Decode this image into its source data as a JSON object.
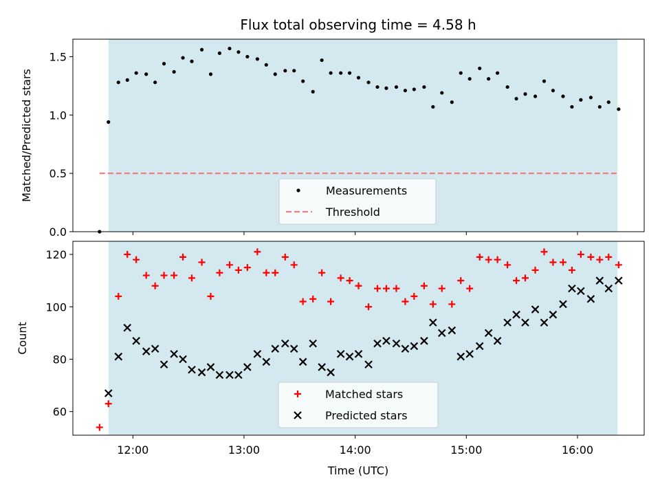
{
  "chart_data": {
    "title": "Flux total observing time = 4.58 h",
    "xlabel": "Time (UTC)",
    "x_units": "hours UTC",
    "x_ticks": [
      {
        "value": 12,
        "label": "12:00"
      },
      {
        "value": 13,
        "label": "13:00"
      },
      {
        "value": 14,
        "label": "14:00"
      },
      {
        "value": 15,
        "label": "15:00"
      },
      {
        "value": 16,
        "label": "16:00"
      }
    ],
    "xlim": [
      11.46,
      16.6
    ],
    "shaded_span": [
      11.78,
      16.36
    ],
    "shade_color": "#d3e9ef",
    "panels": [
      {
        "type": "scatter",
        "ylabel": "Matched/Predicted stars",
        "ylim": [
          0,
          1.65
        ],
        "y_ticks": [
          "0.0",
          "0.5",
          "1.0",
          "1.5"
        ],
        "y_tick_values": [
          0,
          0.5,
          1.0,
          1.5
        ],
        "legend_position": "lower-center",
        "series": [
          {
            "name": "Measurements",
            "marker": "dot",
            "color": "#000000",
            "x": [
              11.7,
              11.78,
              11.87,
              11.95,
              12.03,
              12.12,
              12.2,
              12.28,
              12.37,
              12.45,
              12.53,
              12.62,
              12.7,
              12.78,
              12.87,
              12.95,
              13.03,
              13.12,
              13.2,
              13.28,
              13.37,
              13.45,
              13.53,
              13.62,
              13.7,
              13.78,
              13.87,
              13.95,
              14.03,
              14.12,
              14.2,
              14.28,
              14.37,
              14.45,
              14.53,
              14.62,
              14.7,
              14.78,
              14.87,
              14.95,
              15.03,
              15.12,
              15.2,
              15.28,
              15.37,
              15.45,
              15.53,
              15.62,
              15.7,
              15.78,
              15.87,
              15.95,
              16.03,
              16.12,
              16.2,
              16.28,
              16.37
            ],
            "y": [
              0.0,
              0.94,
              1.28,
              1.3,
              1.36,
              1.35,
              1.28,
              1.44,
              1.37,
              1.49,
              1.46,
              1.56,
              1.35,
              1.53,
              1.57,
              1.54,
              1.5,
              1.48,
              1.43,
              1.35,
              1.38,
              1.38,
              1.29,
              1.2,
              1.47,
              1.36,
              1.36,
              1.36,
              1.32,
              1.28,
              1.24,
              1.23,
              1.24,
              1.21,
              1.22,
              1.24,
              1.07,
              1.19,
              1.11,
              1.36,
              1.31,
              1.4,
              1.31,
              1.36,
              1.24,
              1.14,
              1.18,
              1.16,
              1.29,
              1.21,
              1.16,
              1.07,
              1.13,
              1.15,
              1.07,
              1.11,
              1.05
            ]
          },
          {
            "name": "Threshold",
            "marker": "dashed-line",
            "color": "#f08080",
            "x": [
              11.7,
              16.37
            ],
            "y": [
              0.5,
              0.5
            ]
          }
        ]
      },
      {
        "type": "scatter",
        "ylabel": "Count",
        "ylim": [
          51,
          125
        ],
        "y_ticks": [
          "60",
          "80",
          "100",
          "120"
        ],
        "y_tick_values": [
          60,
          80,
          100,
          120
        ],
        "legend_position": "lower-center",
        "series": [
          {
            "name": "Matched stars",
            "marker": "plus",
            "color": "#ff0000",
            "x": [
              11.7,
              11.78,
              11.87,
              11.95,
              12.03,
              12.12,
              12.2,
              12.28,
              12.37,
              12.45,
              12.53,
              12.62,
              12.7,
              12.78,
              12.87,
              12.95,
              13.03,
              13.12,
              13.2,
              13.28,
              13.37,
              13.45,
              13.53,
              13.62,
              13.7,
              13.78,
              13.87,
              13.95,
              14.03,
              14.12,
              14.2,
              14.28,
              14.37,
              14.45,
              14.53,
              14.62,
              14.7,
              14.78,
              14.87,
              14.95,
              15.03,
              15.12,
              15.2,
              15.28,
              15.37,
              15.45,
              15.53,
              15.62,
              15.7,
              15.78,
              15.87,
              15.95,
              16.03,
              16.12,
              16.2,
              16.28,
              16.37
            ],
            "y": [
              54,
              63,
              104,
              120,
              118,
              112,
              108,
              112,
              112,
              119,
              111,
              117,
              104,
              113,
              116,
              114,
              115,
              121,
              113,
              113,
              119,
              116,
              102,
              103,
              113,
              102,
              111,
              110,
              108,
              100,
              107,
              107,
              107,
              102,
              104,
              108,
              101,
              107,
              101,
              110,
              107,
              119,
              118,
              118,
              116,
              110,
              111,
              114,
              121,
              117,
              117,
              114,
              120,
              119,
              118,
              119,
              116
            ]
          },
          {
            "name": "Predicted stars",
            "marker": "x",
            "color": "#000000",
            "x": [
              11.78,
              11.87,
              11.95,
              12.03,
              12.12,
              12.2,
              12.28,
              12.37,
              12.45,
              12.53,
              12.62,
              12.7,
              12.78,
              12.87,
              12.95,
              13.03,
              13.12,
              13.2,
              13.28,
              13.37,
              13.45,
              13.53,
              13.62,
              13.7,
              13.78,
              13.87,
              13.95,
              14.03,
              14.12,
              14.2,
              14.28,
              14.37,
              14.45,
              14.53,
              14.62,
              14.7,
              14.78,
              14.87,
              14.95,
              15.03,
              15.12,
              15.2,
              15.28,
              15.37,
              15.45,
              15.53,
              15.62,
              15.7,
              15.78,
              15.87,
              15.95,
              16.03,
              16.12,
              16.2,
              16.28,
              16.37
            ],
            "y": [
              67,
              81,
              92,
              87,
              83,
              84,
              78,
              82,
              80,
              76,
              75,
              77,
              74,
              74,
              74,
              77,
              82,
              79,
              84,
              86,
              84,
              79,
              86,
              77,
              75,
              82,
              81,
              82,
              78,
              86,
              87,
              86,
              84,
              85,
              87,
              94,
              90,
              91,
              81,
              82,
              85,
              90,
              87,
              94,
              97,
              94,
              99,
              94,
              97,
              101,
              107,
              106,
              103,
              110,
              107,
              110
            ]
          }
        ]
      }
    ]
  }
}
